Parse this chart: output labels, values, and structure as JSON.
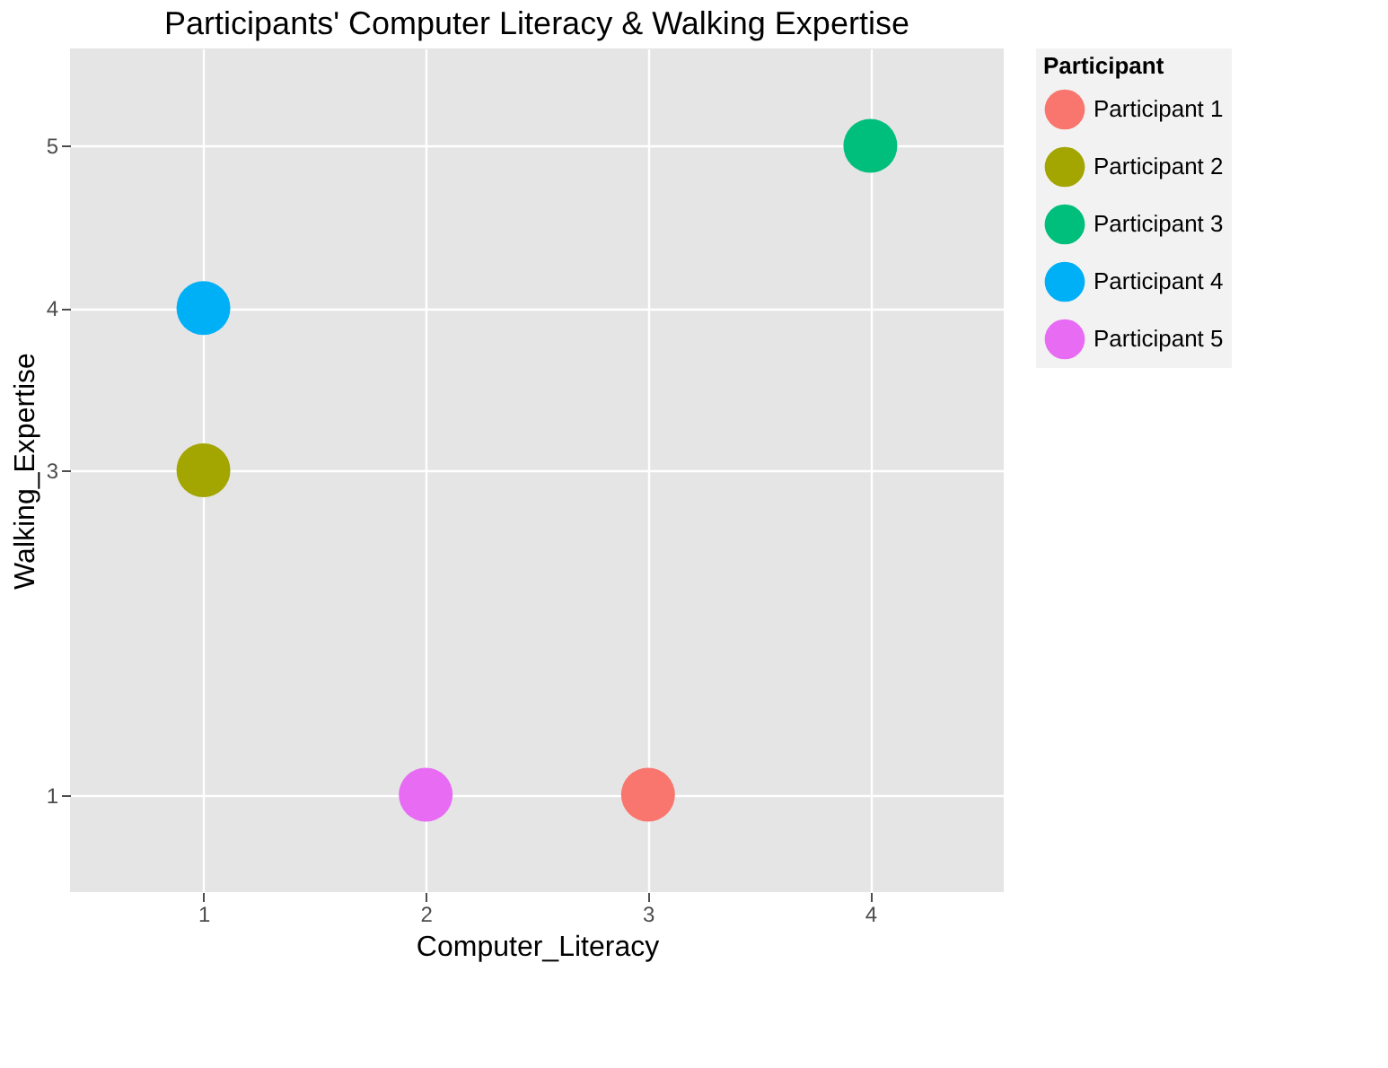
{
  "chart_data": {
    "type": "scatter",
    "title": "Participants' Computer Literacy & Walking Expertise",
    "xlabel": "Computer_Literacy",
    "ylabel": "Walking_Expertise",
    "legend_title": "Participant",
    "xlim": [
      0.4,
      4.6
    ],
    "xticks": [
      1,
      2,
      3,
      4
    ],
    "ylim": [
      0.4,
      5.6
    ],
    "yticks": [
      1,
      3,
      4,
      5
    ],
    "grid": true,
    "legend": "right",
    "marker": "circle",
    "series": [
      {
        "name": "Participant 1",
        "color": "#f8766d",
        "x": [
          3
        ],
        "values": [
          1
        ]
      },
      {
        "name": "Participant 2",
        "color": "#a3a500",
        "x": [
          1
        ],
        "values": [
          3
        ]
      },
      {
        "name": "Participant 3",
        "color": "#00bf7d",
        "x": [
          4
        ],
        "values": [
          5
        ]
      },
      {
        "name": "Participant 4",
        "color": "#00b0f6",
        "x": [
          1
        ],
        "values": [
          4
        ]
      },
      {
        "name": "Participant 5",
        "color": "#e76bf3",
        "x": [
          2
        ],
        "values": [
          1
        ]
      }
    ]
  }
}
